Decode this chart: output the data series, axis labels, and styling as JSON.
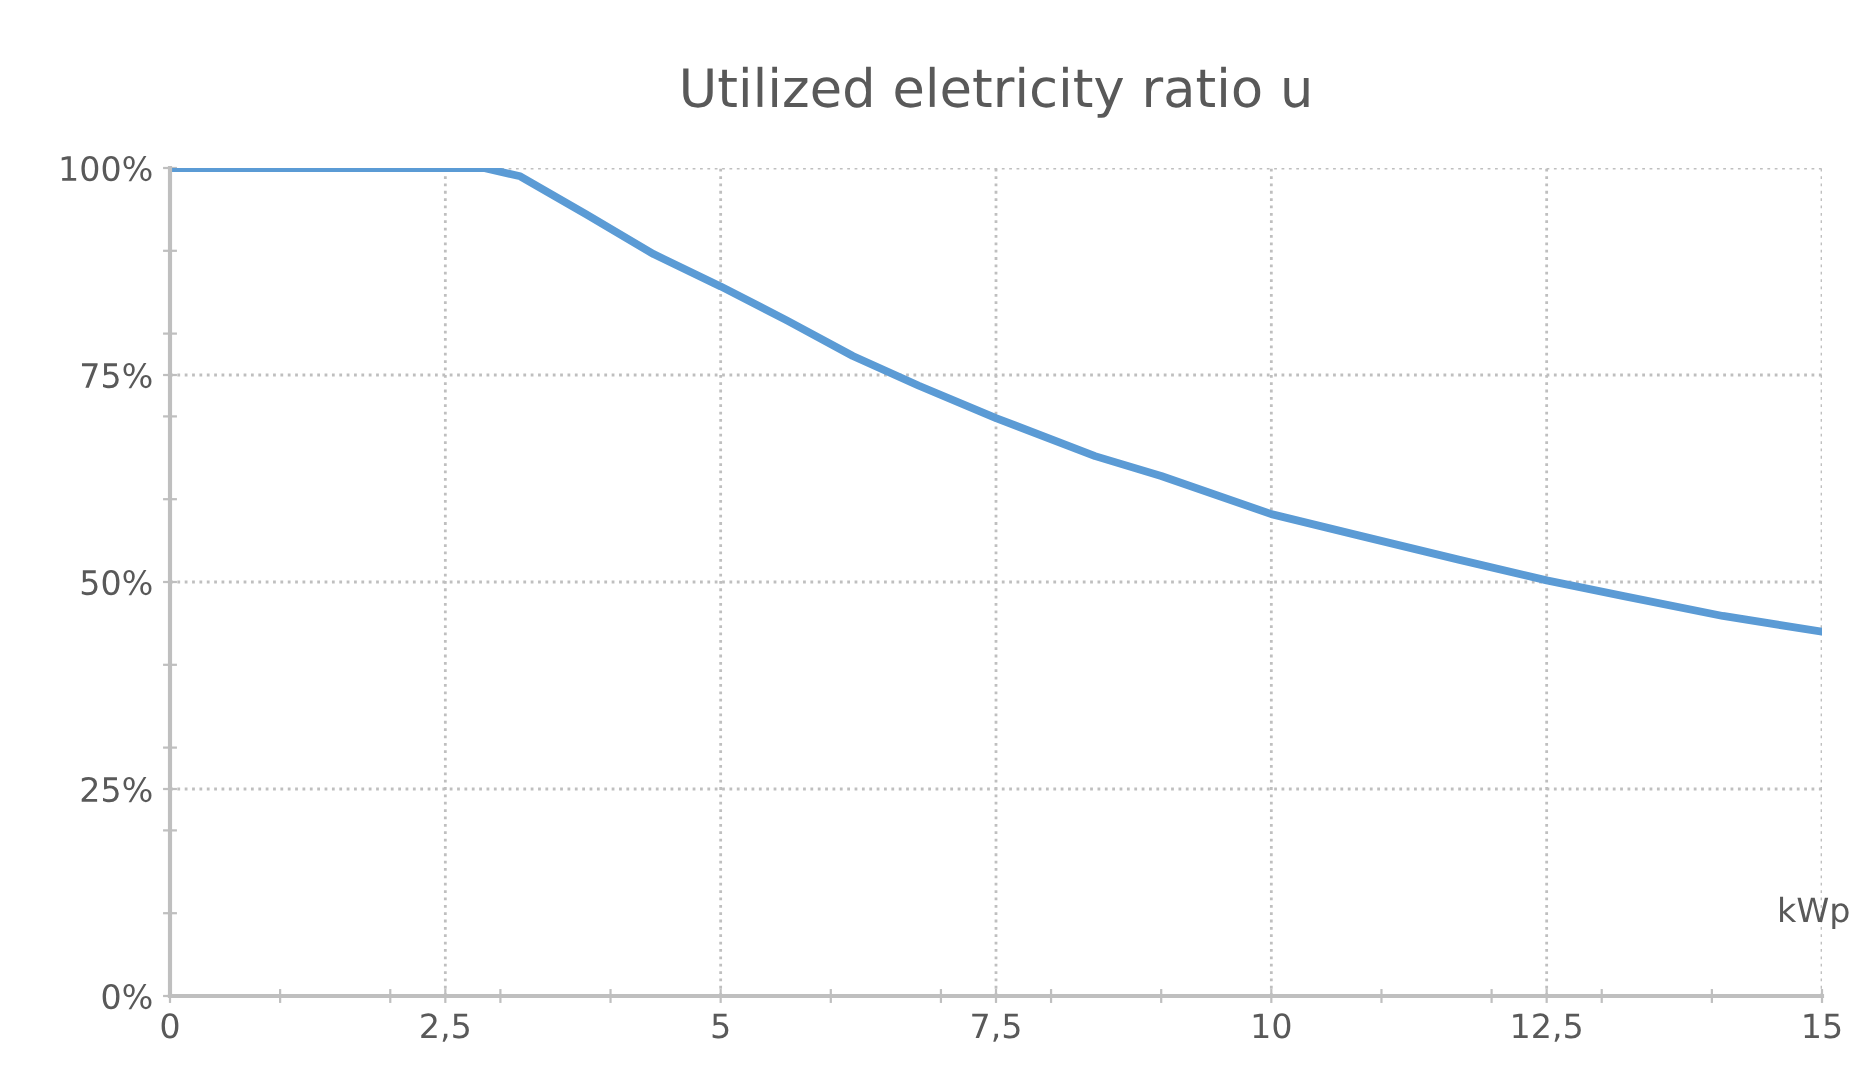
{
  "chart_data": {
    "type": "line",
    "title": "Utilized eletricity ratio u",
    "xlabel": "kWp",
    "series": [
      {
        "color": "#5b9bd5",
        "x": [
          0,
          1,
          2,
          2.5,
          2.85,
          3.18,
          3.78,
          4.39,
          5.0,
          5.6,
          6.2,
          6.8,
          7.5,
          8.4,
          9.0,
          10.0,
          10.8,
          11.7,
          12.5,
          13.2,
          14.1,
          15.0
        ],
        "values": [
          100,
          100,
          100,
          100,
          100,
          99,
          94.4,
          89.6,
          85.7,
          81.6,
          77.3,
          73.7,
          69.8,
          65.2,
          62.8,
          58.2,
          55.6,
          52.7,
          50.2,
          48.3,
          45.9,
          44
        ]
      }
    ],
    "xlim": [
      0,
      15
    ],
    "ylim": [
      0,
      100
    ],
    "xticks": [
      0,
      {
        "value": 1,
        "label": null
      },
      {
        "value": 2,
        "label": null
      },
      {
        "value": 2.5,
        "label": "2,5"
      },
      {
        "value": 3,
        "label": null
      },
      {
        "value": 4,
        "label": null
      },
      5,
      {
        "value": 6,
        "label": null
      },
      {
        "value": 7,
        "label": null
      },
      {
        "value": 7.5,
        "label": "7,5"
      },
      {
        "value": 8,
        "label": null
      },
      {
        "value": 9,
        "label": null
      },
      10,
      {
        "value": 11,
        "label": null
      },
      {
        "value": 12,
        "label": null
      },
      {
        "value": 12.5,
        "label": "12,5"
      },
      {
        "value": 13,
        "label": null
      },
      {
        "value": 14,
        "label": null
      },
      15
    ],
    "yticks": [
      {
        "value": 0,
        "label": "0%"
      },
      {
        "value": 10,
        "label": null
      },
      {
        "value": 20,
        "label": null
      },
      {
        "value": 25,
        "label": "25%"
      },
      {
        "value": 30,
        "label": null
      },
      {
        "value": 40,
        "label": null
      },
      {
        "value": 50,
        "label": "50%"
      },
      {
        "value": 60,
        "label": null
      },
      {
        "value": 70,
        "label": null
      },
      {
        "value": 75,
        "label": "75%"
      },
      {
        "value": 80,
        "label": null
      },
      {
        "value": 90,
        "label": null
      },
      {
        "value": 100,
        "label": "100%"
      }
    ],
    "grid": true,
    "legend": false,
    "marker": "none",
    "line_style": "solid"
  }
}
